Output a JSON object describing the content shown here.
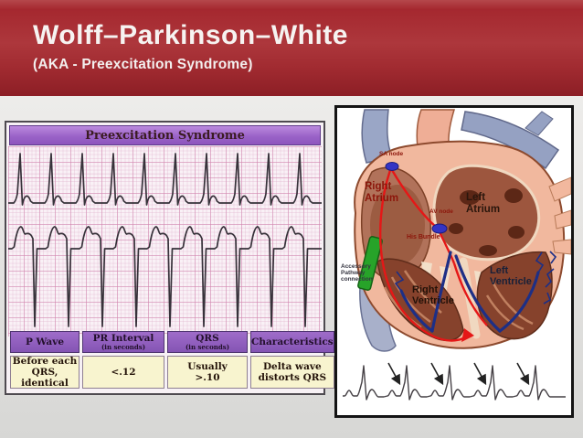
{
  "header": {
    "title": "Wolff–Parkinson–White",
    "subtitle": "(AKA - Preexcitation Syndrome)"
  },
  "colors": {
    "header_red": "#a5282f",
    "panel_purple": "#9a63c8",
    "table_cream": "#f8f4cf",
    "ecg_grid_pink": "#e8c3d8",
    "conduction_red": "#e51717",
    "node_blue": "#3434c4",
    "accessory_green": "#27a329"
  },
  "ecg_panel": {
    "title": "Preexcitation Syndrome",
    "table": {
      "headers": [
        {
          "main": "P Wave",
          "sub": ""
        },
        {
          "main": "PR Interval",
          "sub": "(in seconds)"
        },
        {
          "main": "QRS",
          "sub": "(in seconds)"
        },
        {
          "main": "Characteristics",
          "sub": ""
        }
      ],
      "values": [
        "Before each\nQRS, identical",
        "<.12",
        "Usually\n>.10",
        "Delta wave\ndistorts QRS"
      ]
    }
  },
  "heart_figure": {
    "labels": {
      "sa_node": "SA node",
      "av_node": "AV node",
      "his_bundle": "His Bundle",
      "left_atrium": "Left\nAtrium",
      "right_atrium": "Right\nAtrium",
      "left_ventricle": "Left\nVentricle",
      "right_ventricle": "Right\nVentricle",
      "accessory_pathway": "Accessory\nPathway\nconnection"
    }
  }
}
